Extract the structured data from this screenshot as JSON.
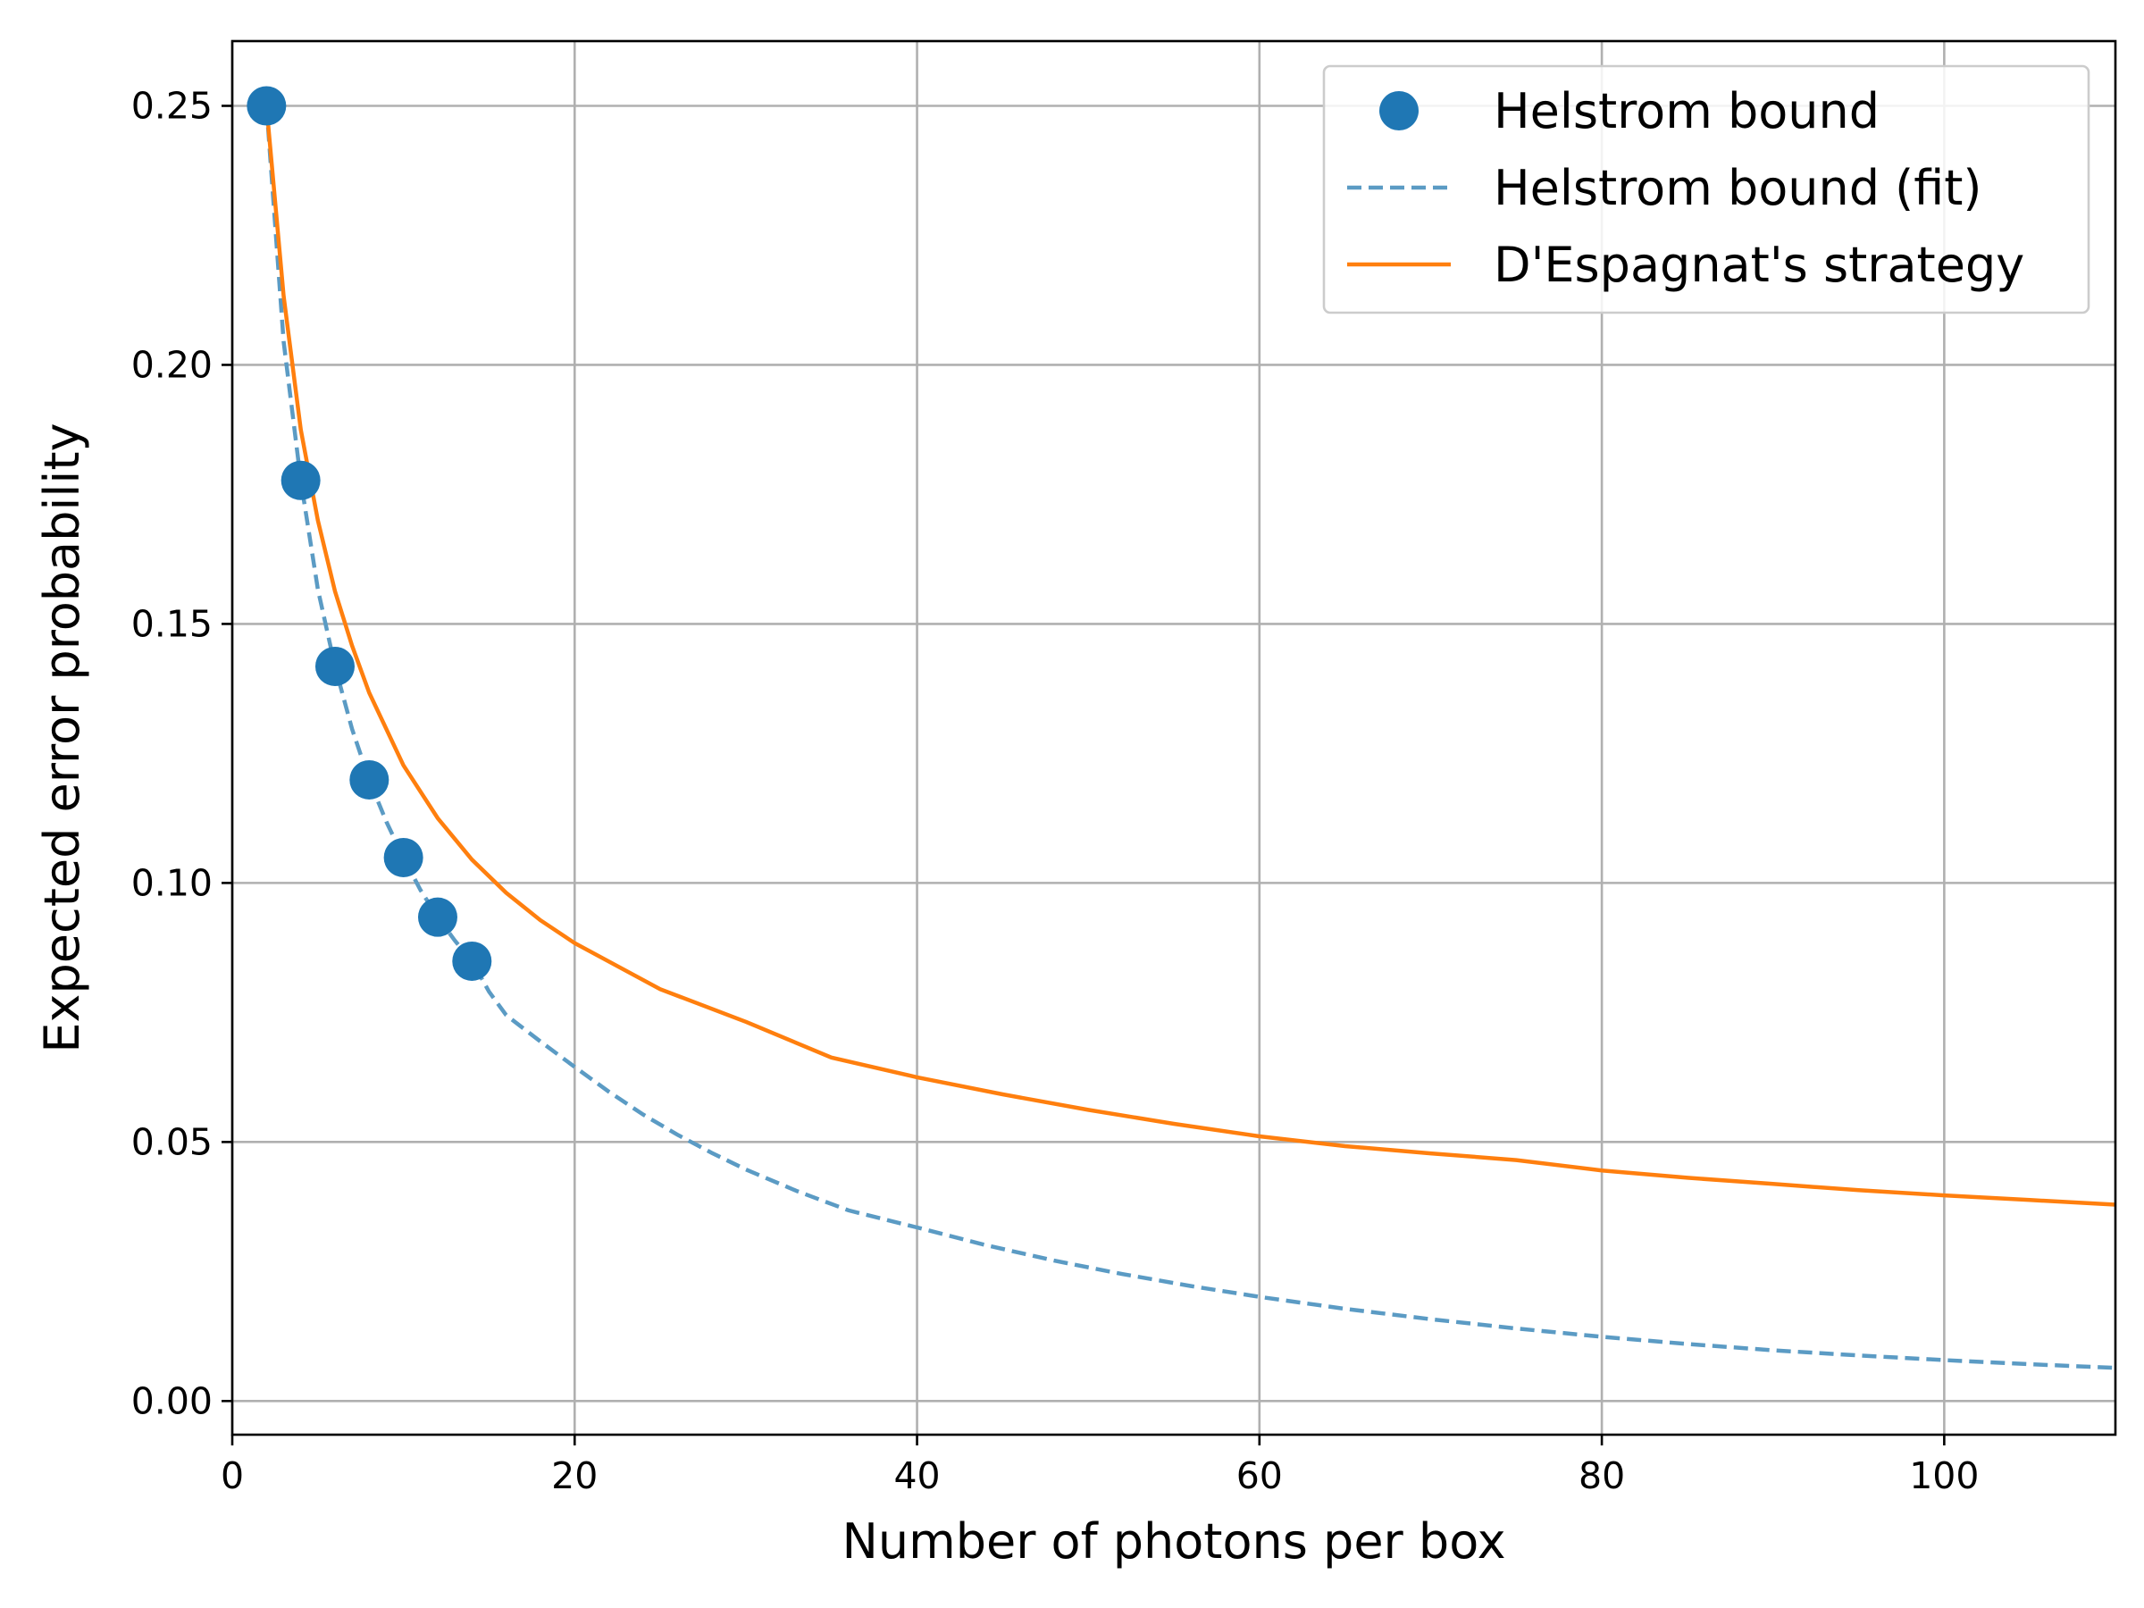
{
  "chart_data": {
    "type": "line",
    "xlabel": "Number of photons per box",
    "ylabel": "Expected error probability",
    "xlim": [
      0,
      110
    ],
    "ylim": [
      -0.0065,
      0.2625
    ],
    "xticks": [
      0,
      20,
      40,
      60,
      80,
      100
    ],
    "yticks": [
      0.0,
      0.05,
      0.1,
      0.15,
      0.2,
      0.25
    ],
    "xtick_labels": [
      "0",
      "20",
      "40",
      "60",
      "80",
      "100"
    ],
    "ytick_labels": [
      "0.00",
      "0.05",
      "0.10",
      "0.15",
      "0.20",
      "0.25"
    ],
    "grid": true,
    "legend_position": "top-right",
    "series": [
      {
        "name": "Helstrom bound",
        "kind": "scatter",
        "color": "#1f77b4",
        "x": [
          2,
          4,
          6,
          8,
          10,
          12,
          14
        ],
        "y": [
          0.25,
          0.1777,
          0.1418,
          0.1199,
          0.1049,
          0.0934,
          0.0849
        ]
      },
      {
        "name": "Helstrom bound (fit)",
        "kind": "dashed-line",
        "color": "#5b9bc4",
        "x": [
          2,
          3,
          4,
          5,
          6,
          7,
          8,
          9,
          10,
          11,
          12,
          13,
          14,
          15,
          16,
          18,
          20,
          22,
          24,
          26,
          28,
          30,
          33,
          36,
          40,
          44,
          48,
          52,
          56,
          60,
          65,
          70,
          75,
          80,
          85,
          90,
          95,
          100,
          105,
          110
        ],
        "y": [
          0.25,
          0.2045,
          0.1777,
          0.1567,
          0.1418,
          0.1297,
          0.1199,
          0.1118,
          0.1049,
          0.0986,
          0.0934,
          0.0889,
          0.0849,
          0.079,
          0.0745,
          0.0694,
          0.0645,
          0.0597,
          0.0553,
          0.0514,
          0.0479,
          0.0447,
          0.0405,
          0.0368,
          0.0335,
          0.0301,
          0.0271,
          0.0245,
          0.0222,
          0.0201,
          0.0178,
          0.0158,
          0.014,
          0.0124,
          0.011,
          0.0098,
          0.0088,
          0.0079,
          0.0071,
          0.0064
        ]
      },
      {
        "name": "D'Espagnat's strategy",
        "kind": "line",
        "color": "#ff7f0e",
        "x": [
          2,
          3,
          4,
          5,
          6,
          7,
          8,
          10,
          12,
          14,
          16,
          18,
          20,
          25,
          30,
          35,
          40,
          45,
          50,
          55,
          60,
          65,
          70,
          75,
          80,
          85,
          90,
          95,
          100,
          105,
          110
        ],
        "y": [
          0.25,
          0.2133,
          0.1875,
          0.17,
          0.1563,
          0.1458,
          0.1367,
          0.1227,
          0.1125,
          0.1045,
          0.0981,
          0.0928,
          0.0884,
          0.0795,
          0.0732,
          0.0663,
          0.0625,
          0.0592,
          0.0562,
          0.0535,
          0.0511,
          0.0492,
          0.0478,
          0.0465,
          0.0445,
          0.0431,
          0.0419,
          0.0407,
          0.0397,
          0.0388,
          0.0379
        ]
      }
    ]
  }
}
